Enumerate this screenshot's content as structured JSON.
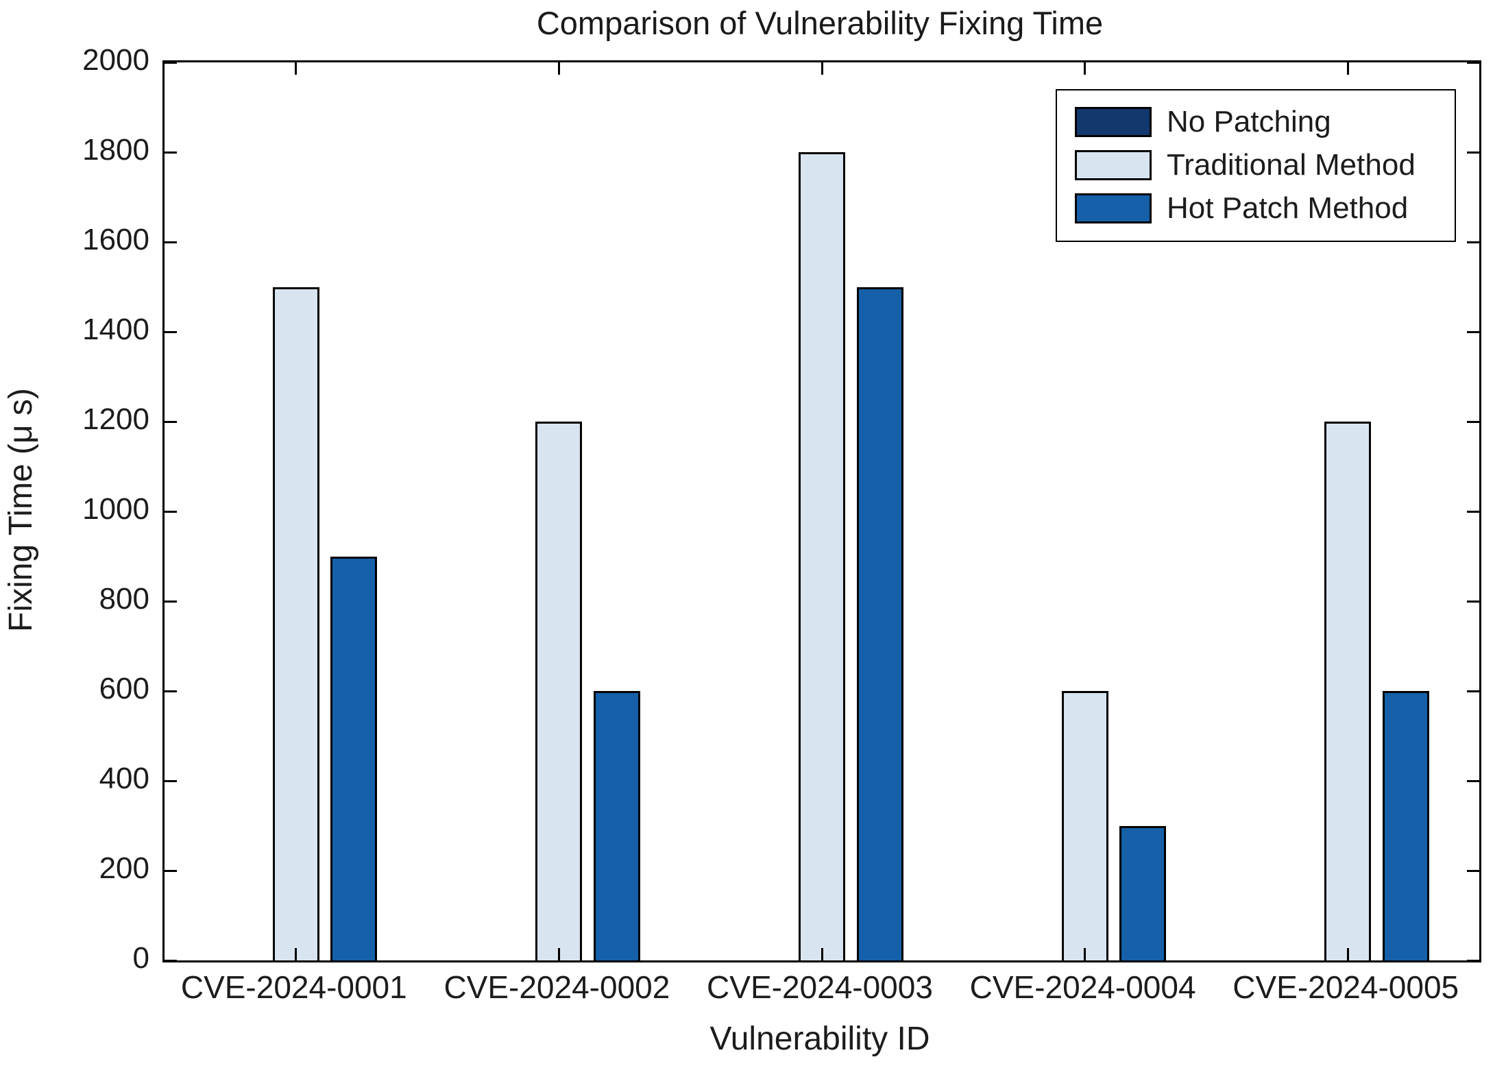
{
  "figure_title": "Comparison of Vulnerability Fixing Time",
  "chart_data": {
    "type": "bar",
    "title": "Comparison of Vulnerability Fixing Time",
    "xlabel": "Vulnerability ID",
    "ylabel": "Fixing Time (μ s)",
    "categories": [
      "CVE-2024-0001",
      "CVE-2024-0002",
      "CVE-2024-0003",
      "CVE-2024-0004",
      "CVE-2024-0005"
    ],
    "series": [
      {
        "name": "No Patching",
        "color": "#12386E",
        "values": [
          0,
          0,
          0,
          0,
          0
        ]
      },
      {
        "name": "Traditional Method",
        "color": "#D9E4F1",
        "values": [
          1500,
          1200,
          1800,
          600,
          1200
        ]
      },
      {
        "name": "Hot Patch Method",
        "color": "#1560A8",
        "values": [
          900,
          600,
          1500,
          300,
          600
        ]
      }
    ],
    "ylim": [
      0,
      2000
    ],
    "yticks": [
      0,
      200,
      400,
      600,
      800,
      1000,
      1200,
      1400,
      1600,
      1800,
      2000
    ],
    "grid": false,
    "legend_position": "top-right",
    "bar_edge_color": "#000000",
    "axis_color": "#000000",
    "background": "#FFFFFF"
  }
}
